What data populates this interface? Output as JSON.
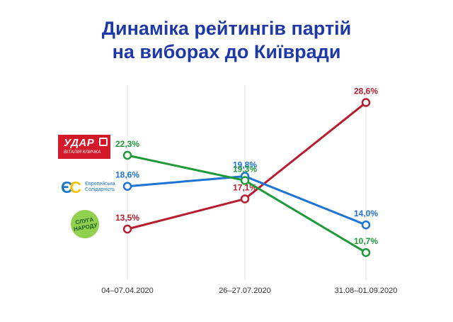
{
  "title_line1": "Динаміка рейтингів партій",
  "title_line2": "на виборах до Київради",
  "logos": {
    "udar": {
      "main": "УДАР",
      "sub": "ВІТАЛІЯ КЛИЧКА"
    },
    "es": {
      "mark_left": "Є",
      "mark_right": "С",
      "text_line1": "Європейська",
      "text_line2": "Солідарність"
    },
    "sluha": {
      "line1": "СЛУГА",
      "line2": "НАРОДУ"
    }
  },
  "chart_data": {
    "type": "line",
    "title": "Динаміка рейтингів партій на виборах до Київради",
    "xlabel": "",
    "ylabel": "",
    "categories": [
      "04–07.04.2020",
      "26–27.07.2020",
      "31.08–01.09.2020"
    ],
    "ylim": [
      8,
      30
    ],
    "grid": "vertical",
    "series": [
      {
        "name": "УДАР Віталія Кличка",
        "color": "#b71c2f",
        "values": [
          13.5,
          17.1,
          28.6
        ],
        "labels": [
          "13,5%",
          "17,1%",
          "28,6%"
        ]
      },
      {
        "name": "Європейська Солідарність",
        "color": "#1e73d4",
        "values": [
          18.6,
          19.8,
          14.0
        ],
        "labels": [
          "18,6%",
          "19,8%",
          "14,0%"
        ]
      },
      {
        "name": "Слуга народу",
        "color": "#1f9a3a",
        "values": [
          22.3,
          19.3,
          10.7
        ],
        "labels": [
          "22,3%",
          "19,3%",
          "10,7%"
        ]
      }
    ]
  }
}
